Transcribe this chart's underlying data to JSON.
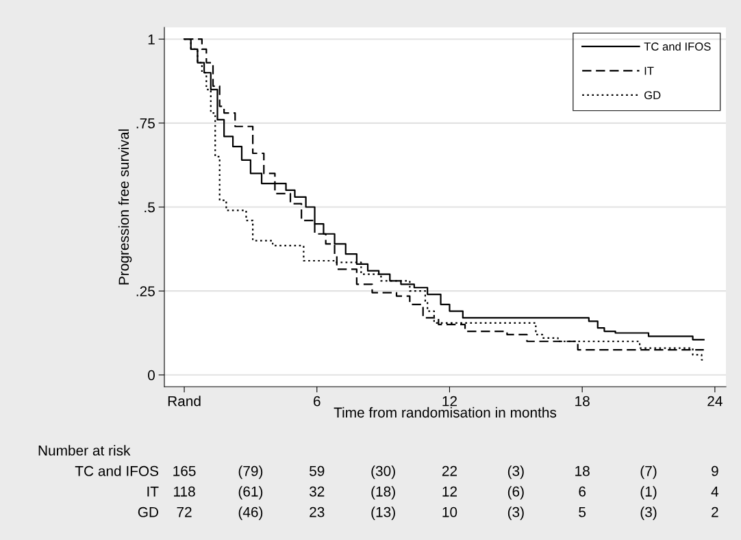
{
  "chart_data": {
    "type": "step",
    "xlabel": "Time from randomisation in months",
    "ylabel": "Progression free survival",
    "xlim": [
      -0.9,
      24.5
    ],
    "ylim": [
      -0.035,
      1.035
    ],
    "xticks": [
      {
        "value": 0,
        "label": "Rand"
      },
      6,
      12,
      18,
      24
    ],
    "yticks": [
      0,
      {
        "value": 0.25,
        "label": ".25"
      },
      {
        "value": 0.5,
        "label": ".5"
      },
      {
        "value": 0.75,
        "label": ".75"
      },
      1
    ],
    "grid": "y",
    "legend": "top right",
    "series": [
      {
        "name": "TC and IFOS",
        "color": "#000000",
        "line_style": "solid",
        "x": [
          0,
          0.3,
          0.6,
          0.9,
          1.2,
          1.5,
          1.8,
          2.2,
          2.6,
          3.0,
          3.5,
          4.0,
          4.6,
          5.0,
          5.5,
          5.9,
          6.3,
          6.8,
          7.3,
          7.8,
          8.3,
          8.8,
          9.3,
          9.8,
          10.4,
          11.0,
          11.6,
          12.0,
          12.6,
          18.3,
          18.7,
          19.0,
          19.5,
          21.0,
          23.0,
          23.5
        ],
        "values": [
          1,
          0.97,
          0.93,
          0.9,
          0.85,
          0.76,
          0.71,
          0.68,
          0.64,
          0.6,
          0.57,
          0.57,
          0.55,
          0.53,
          0.5,
          0.45,
          0.42,
          0.39,
          0.36,
          0.33,
          0.31,
          0.3,
          0.28,
          0.27,
          0.26,
          0.24,
          0.21,
          0.19,
          0.17,
          0.16,
          0.14,
          0.13,
          0.125,
          0.115,
          0.105,
          0.105
        ]
      },
      {
        "name": "IT",
        "color": "#000000",
        "line_style": "dashed",
        "x": [
          0,
          0.8,
          1.0,
          1.3,
          1.6,
          1.8,
          2.3,
          3.1,
          3.6,
          4.1,
          4.8,
          5.3,
          5.9,
          6.4,
          6.8,
          6.9,
          7.8,
          8.5,
          9.6,
          10.2,
          10.8,
          11.5,
          12.7,
          14.6,
          15.5,
          17.8,
          23.5
        ],
        "values": [
          1,
          0.97,
          0.93,
          0.86,
          0.8,
          0.78,
          0.74,
          0.66,
          0.6,
          0.54,
          0.51,
          0.46,
          0.42,
          0.39,
          0.36,
          0.315,
          0.27,
          0.245,
          0.235,
          0.21,
          0.17,
          0.15,
          0.13,
          0.12,
          0.1,
          0.075,
          0.075
        ]
      },
      {
        "name": "GD",
        "color": "#000000",
        "line_style": "dotted",
        "x": [
          0,
          0.3,
          0.6,
          0.8,
          1.0,
          1.2,
          1.4,
          1.6,
          1.9,
          2.8,
          3.1,
          4.0,
          5.4,
          6.8,
          8.0,
          8.9,
          10.2,
          10.9,
          11.0,
          11.3,
          15.9,
          16.2,
          16.9,
          20.6,
          23.0,
          23.4,
          23.5
        ],
        "values": [
          1,
          0.97,
          0.93,
          0.9,
          0.85,
          0.78,
          0.65,
          0.52,
          0.49,
          0.46,
          0.4,
          0.385,
          0.34,
          0.335,
          0.3,
          0.28,
          0.25,
          0.22,
          0.19,
          0.155,
          0.12,
          0.11,
          0.1,
          0.08,
          0.06,
          0.045,
          0.045
        ]
      }
    ],
    "annotations": [
      "Number at risk",
      "TC and IFOS",
      "165",
      "(79)",
      "59",
      "(30)",
      "22",
      "(3)",
      "18",
      "(7)",
      "9",
      "IT",
      "118",
      "(61)",
      "32",
      "(18)",
      "12",
      "(6)",
      "6",
      "(1)",
      "4",
      "GD",
      "72",
      "(46)",
      "23",
      "(13)",
      "10",
      "(3)",
      "5",
      "(3)",
      "2"
    ]
  }
}
